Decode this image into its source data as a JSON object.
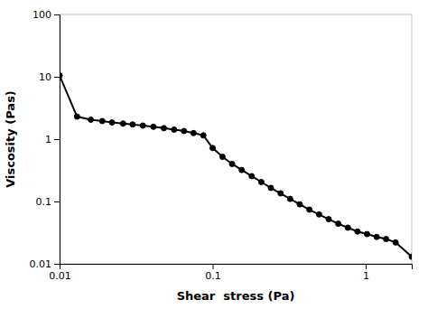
{
  "chart_data": {
    "type": "line",
    "x": [
      0.01,
      0.013,
      0.016,
      0.019,
      0.022,
      0.026,
      0.03,
      0.035,
      0.041,
      0.048,
      0.056,
      0.065,
      0.075,
      0.087,
      0.1,
      0.116,
      0.134,
      0.155,
      0.18,
      0.208,
      0.24,
      0.278,
      0.321,
      0.371,
      0.429,
      0.496,
      0.573,
      0.662,
      0.765,
      0.884,
      1.02,
      1.18,
      1.36,
      1.57,
      2.0
    ],
    "values": [
      10.5,
      2.3,
      2.05,
      1.95,
      1.85,
      1.78,
      1.72,
      1.65,
      1.58,
      1.5,
      1.42,
      1.35,
      1.25,
      1.15,
      0.72,
      0.52,
      0.4,
      0.32,
      0.255,
      0.205,
      0.165,
      0.135,
      0.11,
      0.09,
      0.074,
      0.062,
      0.052,
      0.044,
      0.038,
      0.033,
      0.03,
      0.027,
      0.025,
      0.022,
      0.013
    ],
    "xlabel": "Shear  stress (Pa)",
    "ylabel": "Viscosity (Pas)",
    "xlim": [
      0.01,
      2.0
    ],
    "ylim": [
      0.01,
      100
    ],
    "xticks": [
      0.01,
      0.1,
      1
    ],
    "yticks": [
      0.01,
      0.1,
      1,
      10,
      100
    ],
    "log": true,
    "color": "#000000",
    "marker": "circle"
  }
}
